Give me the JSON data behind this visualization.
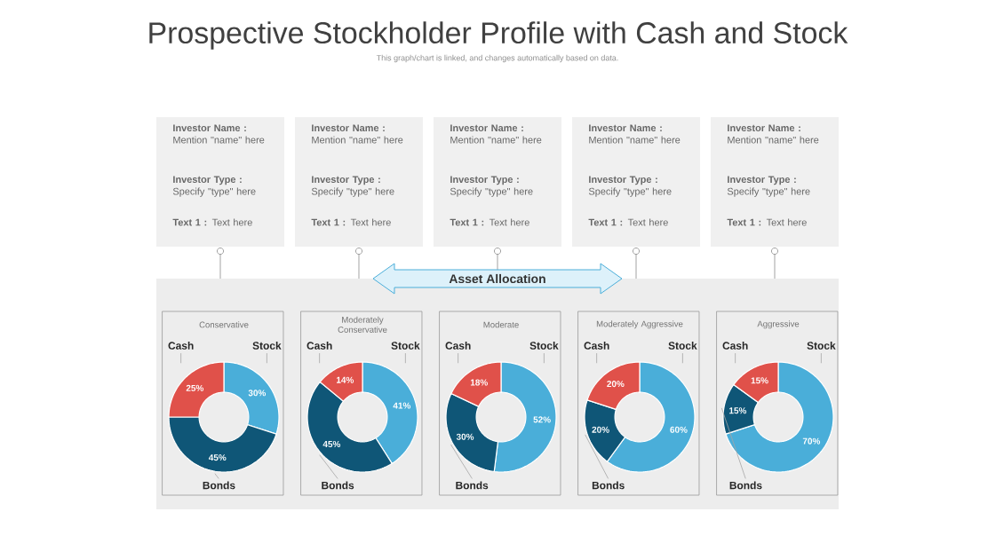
{
  "chart_data": [
    {
      "type": "other",
      "title": "Prospective Stockholder Profile with Cash and Stock",
      "subtitle": "This graph/chart is linked, and changes automatically based on data.",
      "annotations": [
        "**Investor Name :** Mention \"name\" here",
        "**Investor Type :** Specify \"type\" here",
        "**Text 1 :** Text here",
        "**Investor Name :** Mention \"name\" here",
        "**Investor Type :** Specify \"type\" here",
        "**Text 1 :** Text here",
        "**Investor Name :** Mention \"name\" here",
        "**Investor Type :** Specify \"type\" here",
        "**Text 1 :** Text here",
        "**Investor Name :** Mention \"name\" here",
        "**Investor Type :** Specify \"type\" here",
        "**Text 1 :** Text here",
        "**Investor Name :** Mention \"name\" here",
        "**Investor Type :** Specify \"type\" here",
        "**Text 1 :** Text here",
        "Asset Allocation"
      ]
    },
    {
      "type": "donut",
      "title": "Conservative",
      "categories": [
        "Stock",
        "Bonds",
        "Cash"
      ],
      "values": [
        30,
        45,
        25
      ],
      "colors": [
        "#4aaed9",
        "#0f5677",
        "#e0514a"
      ],
      "value_labels": [
        "30%",
        "45%",
        "25%"
      ]
    },
    {
      "type": "donut",
      "title": "Moderately Conservative",
      "categories": [
        "Stock",
        "Bonds",
        "Cash"
      ],
      "values": [
        41,
        45,
        14
      ],
      "colors": [
        "#4aaed9",
        "#0f5677",
        "#e0514a"
      ],
      "value_labels": [
        "41%",
        "45%",
        "14%"
      ]
    },
    {
      "type": "donut",
      "title": "Moderate",
      "categories": [
        "Stock",
        "Bonds",
        "Cash"
      ],
      "values": [
        52,
        30,
        18
      ],
      "colors": [
        "#4aaed9",
        "#0f5677",
        "#e0514a"
      ],
      "value_labels": [
        "52%",
        "30%",
        "18%"
      ]
    },
    {
      "type": "donut",
      "title": "Moderately Aggressive",
      "categories": [
        "Stock",
        "Bonds",
        "Cash"
      ],
      "values": [
        60,
        20,
        20
      ],
      "colors": [
        "#4aaed9",
        "#0f5677",
        "#e0514a"
      ],
      "value_labels": [
        "60%",
        "20%",
        "20%"
      ]
    },
    {
      "type": "donut",
      "title": "Aggressive",
      "categories": [
        "Stock",
        "Bonds",
        "Cash"
      ],
      "values": [
        70,
        15,
        15
      ],
      "colors": [
        "#4aaed9",
        "#0f5677",
        "#e0514a"
      ],
      "value_labels": [
        "70%",
        "15%",
        "15%"
      ]
    }
  ]
}
